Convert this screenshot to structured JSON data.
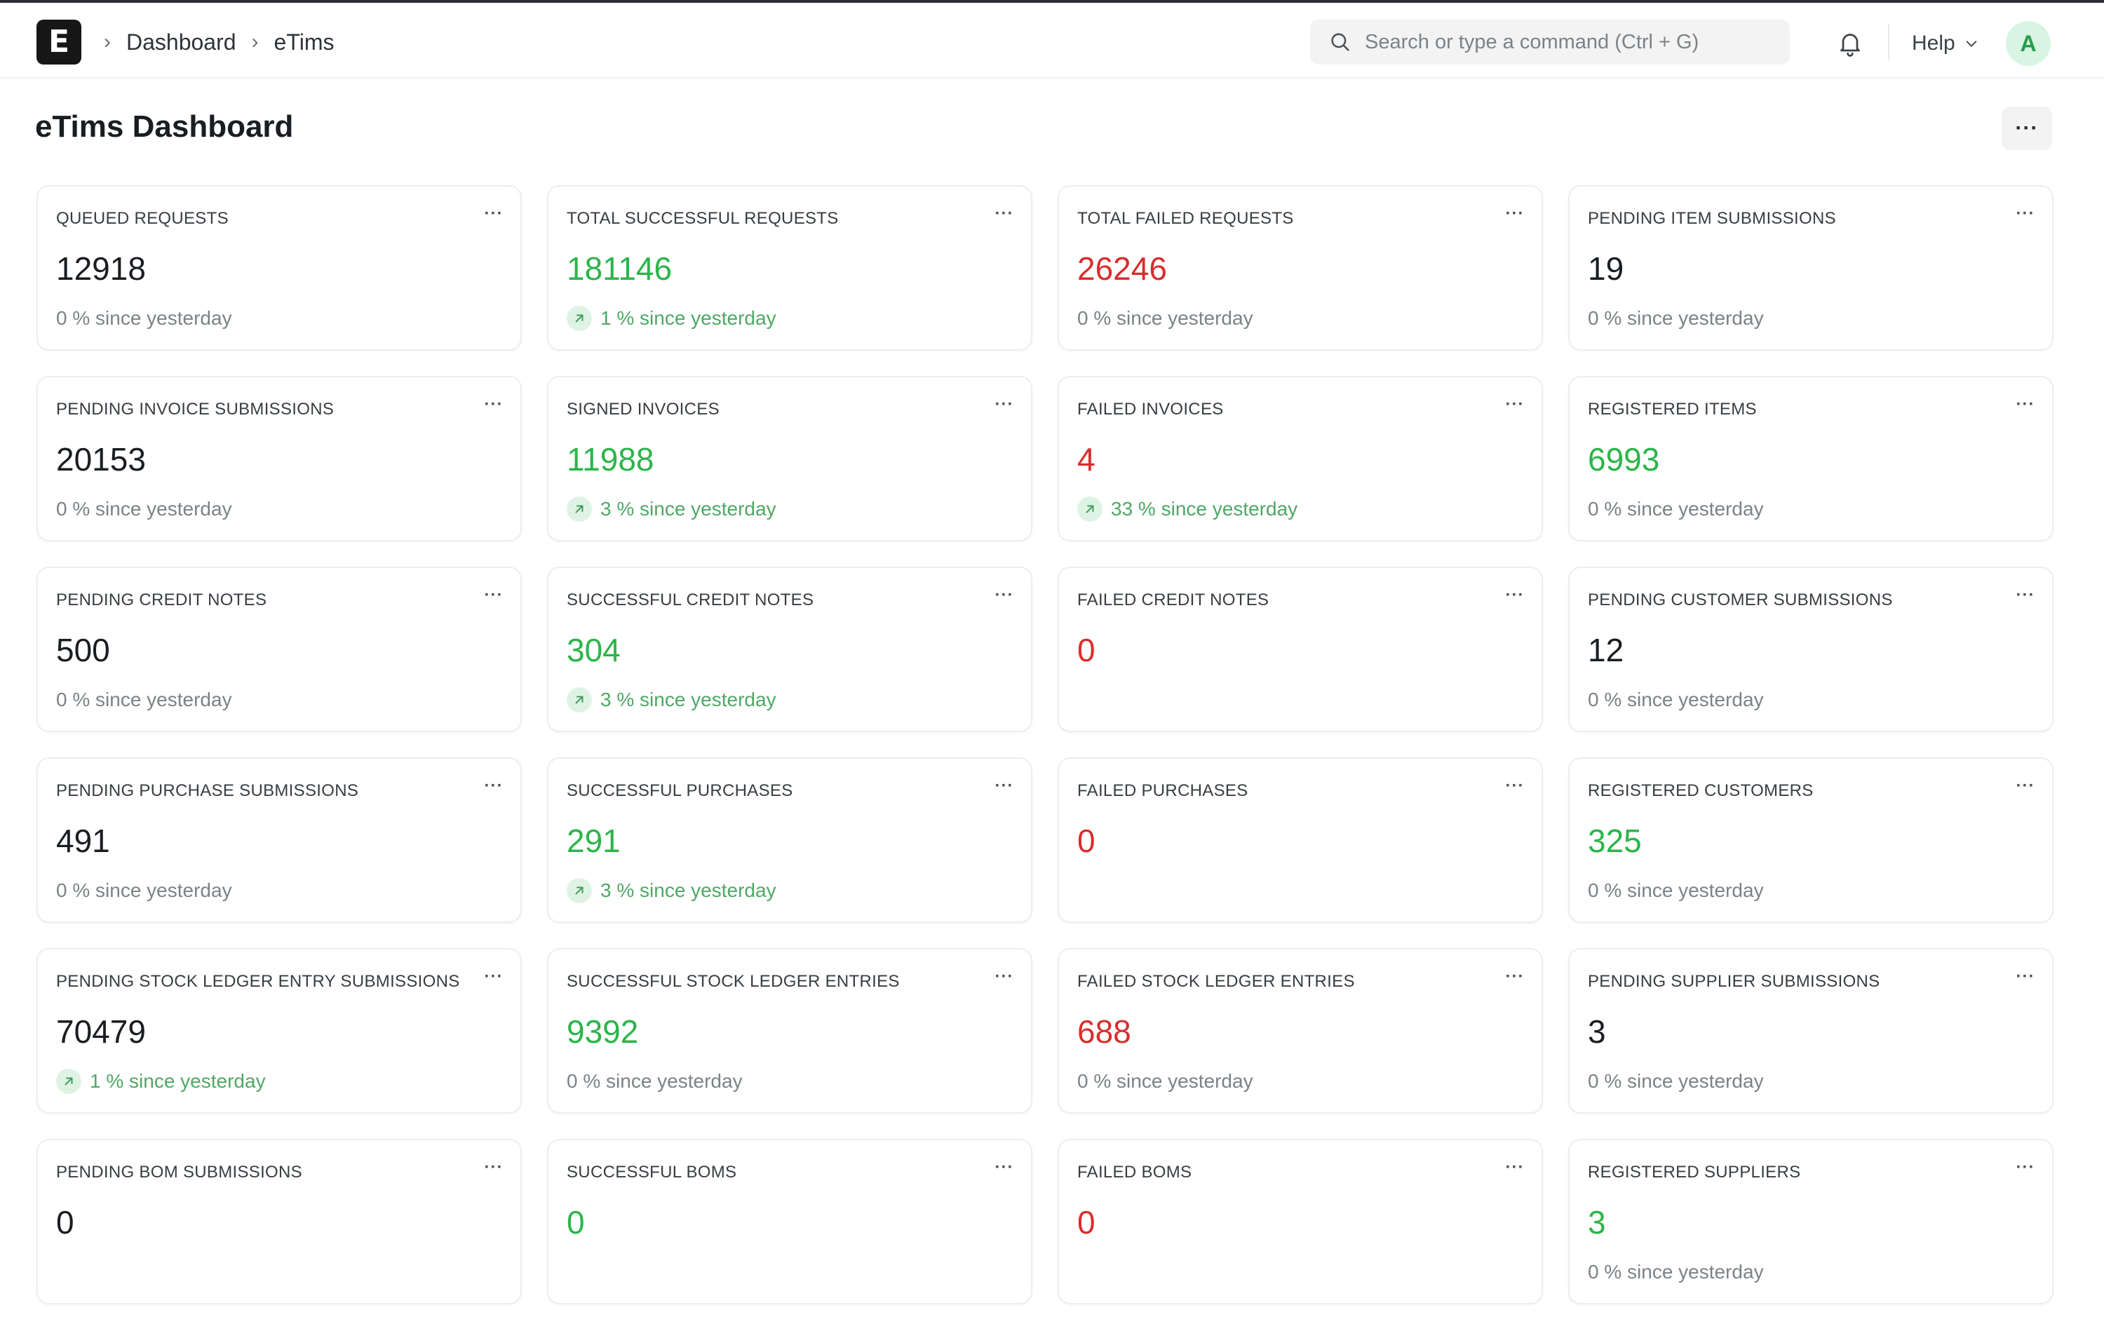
{
  "navbar": {
    "logo_letter": "E",
    "breadcrumbs": [
      "Dashboard",
      "eTims"
    ],
    "search_placeholder": "Search or type a command (Ctrl + G)",
    "help_label": "Help",
    "avatar_initial": "A"
  },
  "page": {
    "title": "eTims Dashboard",
    "menu_label": "···"
  },
  "colors": {
    "positive": "#2bb54a",
    "negative": "#d92d2d",
    "neutral": "#1a1d21"
  },
  "cards": [
    {
      "title": "QUEUED REQUESTS",
      "value": "12918",
      "tone": "neutral",
      "stat": "0 % since yesterday",
      "trend": "flat"
    },
    {
      "title": "TOTAL SUCCESSFUL REQUESTS",
      "value": "181146",
      "tone": "green",
      "stat": "1 % since yesterday",
      "trend": "up"
    },
    {
      "title": "TOTAL FAILED REQUESTS",
      "value": "26246",
      "tone": "red",
      "stat": "0 % since yesterday",
      "trend": "flat"
    },
    {
      "title": "PENDING ITEM SUBMISSIONS",
      "value": "19",
      "tone": "neutral",
      "stat": "0 % since yesterday",
      "trend": "flat"
    },
    {
      "title": "PENDING INVOICE SUBMISSIONS",
      "value": "20153",
      "tone": "neutral",
      "stat": "0 % since yesterday",
      "trend": "flat"
    },
    {
      "title": "SIGNED INVOICES",
      "value": "11988",
      "tone": "green",
      "stat": "3 % since yesterday",
      "trend": "up"
    },
    {
      "title": "FAILED INVOICES",
      "value": "4",
      "tone": "red",
      "stat": "33 % since yesterday",
      "trend": "up"
    },
    {
      "title": "REGISTERED ITEMS",
      "value": "6993",
      "tone": "green",
      "stat": "0 % since yesterday",
      "trend": "flat"
    },
    {
      "title": "PENDING CREDIT NOTES",
      "value": "500",
      "tone": "neutral",
      "stat": "0 % since yesterday",
      "trend": "flat"
    },
    {
      "title": "SUCCESSFUL CREDIT NOTES",
      "value": "304",
      "tone": "green",
      "stat": "3 % since yesterday",
      "trend": "up"
    },
    {
      "title": "FAILED CREDIT NOTES",
      "value": "0",
      "tone": "red",
      "stat": "",
      "trend": "none"
    },
    {
      "title": "PENDING CUSTOMER SUBMISSIONS",
      "value": "12",
      "tone": "neutral",
      "stat": "0 % since yesterday",
      "trend": "flat"
    },
    {
      "title": "PENDING PURCHASE SUBMISSIONS",
      "value": "491",
      "tone": "neutral",
      "stat": "0 % since yesterday",
      "trend": "flat"
    },
    {
      "title": "SUCCESSFUL PURCHASES",
      "value": "291",
      "tone": "green",
      "stat": "3 % since yesterday",
      "trend": "up"
    },
    {
      "title": "FAILED PURCHASES",
      "value": "0",
      "tone": "red",
      "stat": "",
      "trend": "none"
    },
    {
      "title": "REGISTERED CUSTOMERS",
      "value": "325",
      "tone": "green",
      "stat": "0 % since yesterday",
      "trend": "flat"
    },
    {
      "title": "PENDING STOCK LEDGER ENTRY SUBMISSIONS",
      "value": "70479",
      "tone": "neutral",
      "stat": "1 % since yesterday",
      "trend": "up"
    },
    {
      "title": "SUCCESSFUL STOCK LEDGER ENTRIES",
      "value": "9392",
      "tone": "green",
      "stat": "0 % since yesterday",
      "trend": "flat"
    },
    {
      "title": "FAILED STOCK LEDGER ENTRIES",
      "value": "688",
      "tone": "red",
      "stat": "0 % since yesterday",
      "trend": "flat"
    },
    {
      "title": "PENDING SUPPLIER SUBMISSIONS",
      "value": "3",
      "tone": "neutral",
      "stat": "0 % since yesterday",
      "trend": "flat"
    },
    {
      "title": "PENDING BOM SUBMISSIONS",
      "value": "0",
      "tone": "neutral",
      "stat": "",
      "trend": "none"
    },
    {
      "title": "SUCCESSFUL BOMS",
      "value": "0",
      "tone": "green",
      "stat": "",
      "trend": "none"
    },
    {
      "title": "FAILED BOMS",
      "value": "0",
      "tone": "red",
      "stat": "",
      "trend": "none"
    },
    {
      "title": "REGISTERED SUPPLIERS",
      "value": "3",
      "tone": "green",
      "stat": "0 % since yesterday",
      "trend": "flat"
    }
  ],
  "icons": {
    "search": "search-icon",
    "bell": "bell-icon",
    "chevron": "chevron-down-icon",
    "trend_up": "arrow-up-right-icon",
    "card_menu": "more-horizontal-icon"
  }
}
